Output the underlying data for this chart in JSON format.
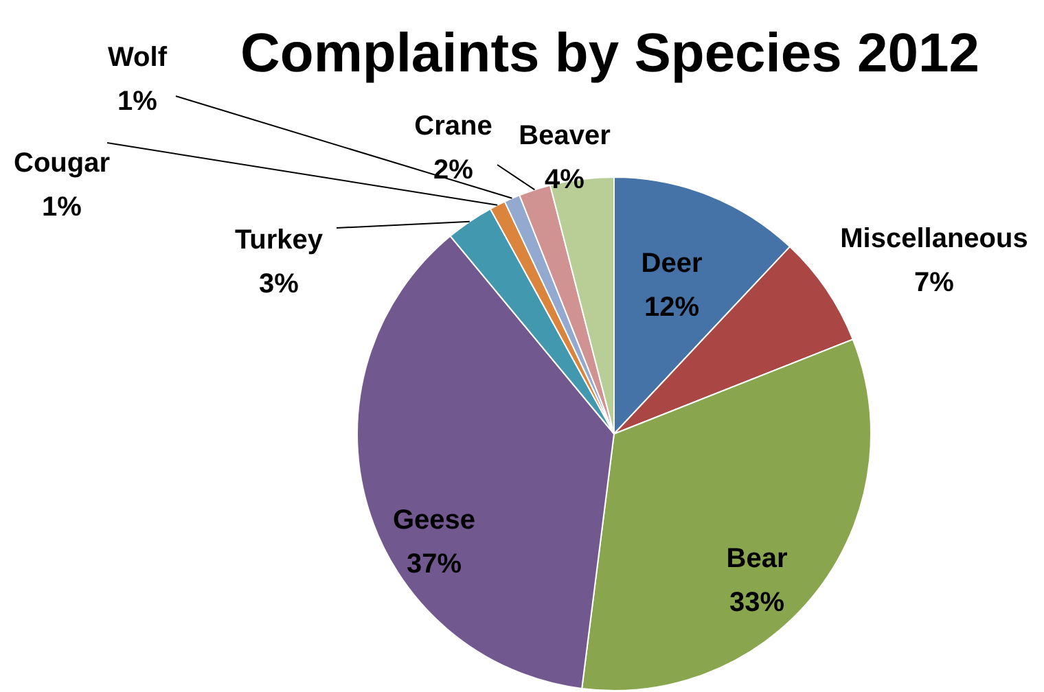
{
  "chart_data": {
    "type": "pie",
    "title": "Complaints by Species 2012",
    "categories": [
      "Deer",
      "Miscellaneous",
      "Bear",
      "Geese",
      "Turkey",
      "Cougar",
      "Wolf",
      "Crane",
      "Beaver"
    ],
    "values": [
      12,
      7,
      33,
      37,
      3,
      1,
      1,
      2,
      4
    ],
    "value_labels": [
      "12%",
      "7%",
      "33%",
      "37%",
      "3%",
      "1%",
      "1%",
      "2%",
      "4%"
    ],
    "colors": [
      "#4572a7",
      "#aa4643",
      "#89a54e",
      "#71588f",
      "#4198af",
      "#db843d",
      "#93a9cf",
      "#d19392",
      "#b9cd96"
    ]
  }
}
